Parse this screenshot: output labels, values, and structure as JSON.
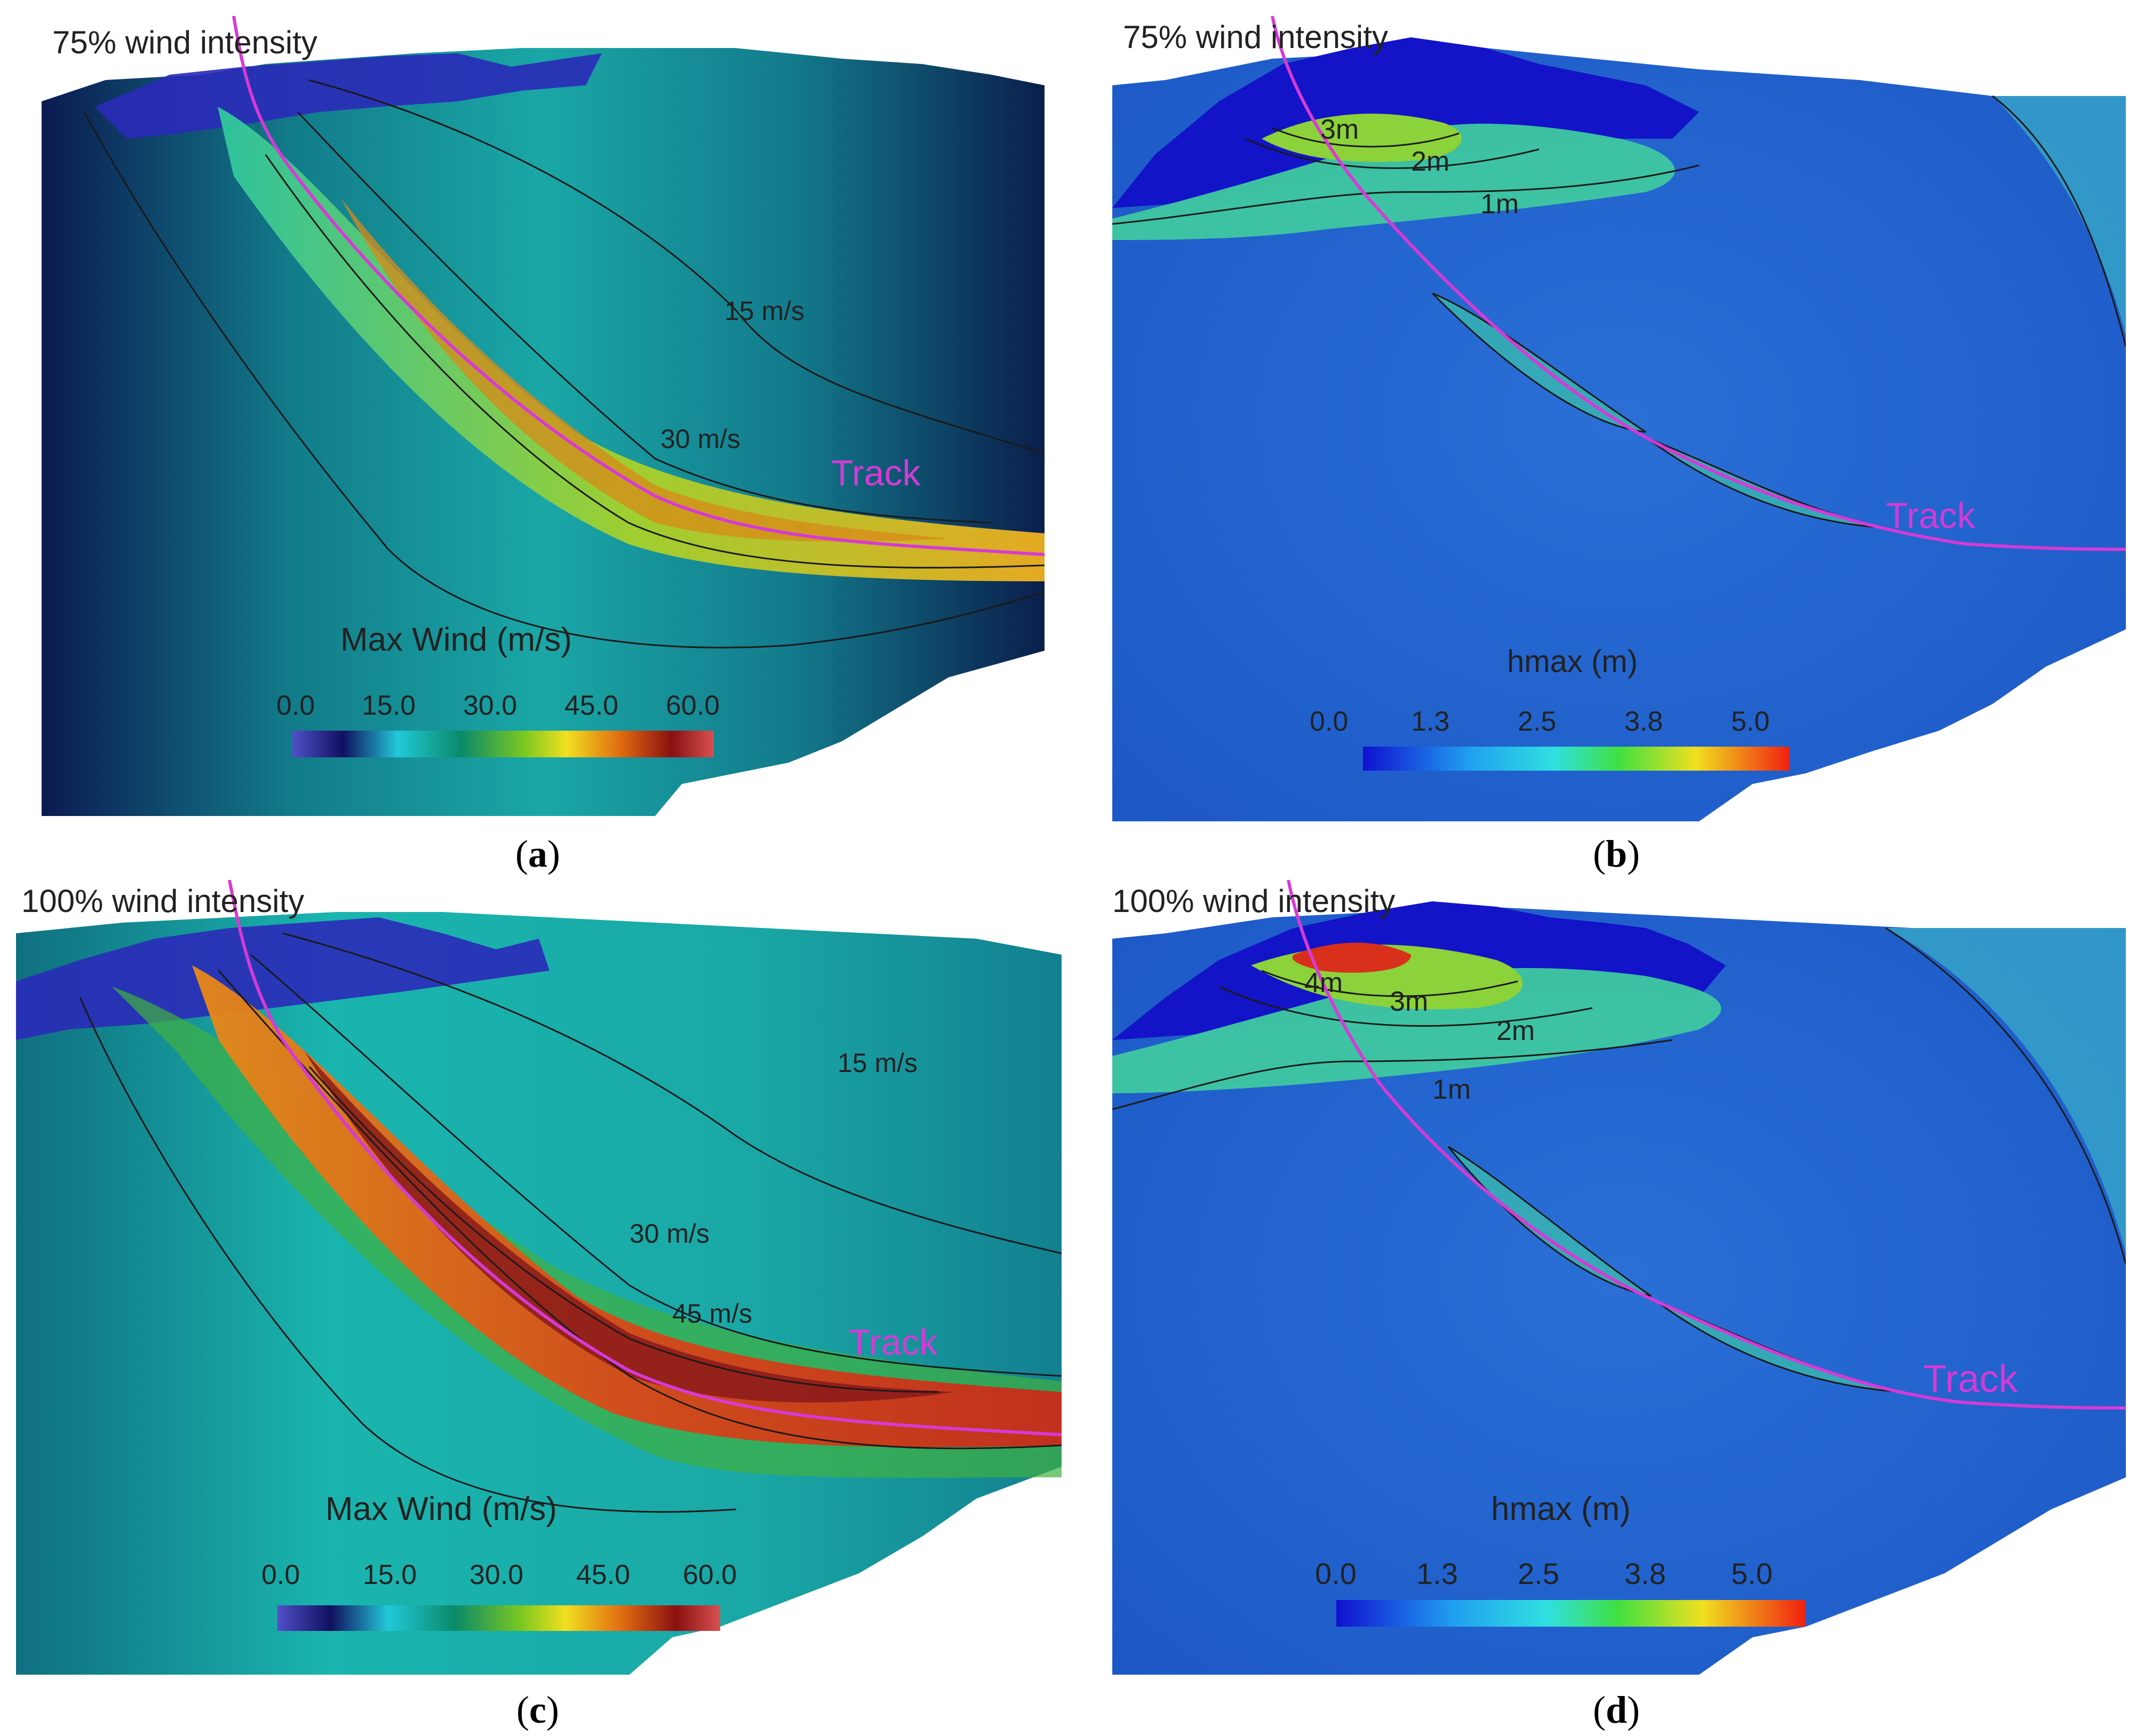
{
  "panels": [
    {
      "id": "a",
      "kind": "wind",
      "intensity_label": "75% wind intensity",
      "colorbar_title": "Max Wind  (m/s)",
      "colorbar_ticks": [
        "0.0",
        "15.0",
        "30.0",
        "45.0",
        "60.0"
      ],
      "colorbar_range": [
        0,
        60
      ],
      "contour_labels": [
        "15 m/s",
        "30 m/s"
      ],
      "track_label": "Track",
      "sublabel": "a"
    },
    {
      "id": "b",
      "kind": "surge",
      "intensity_label": "75% wind intensity",
      "colorbar_title": "hmax (m)",
      "colorbar_ticks": [
        "0.0",
        "1.3",
        "2.5",
        "3.8",
        "5.0"
      ],
      "colorbar_range": [
        0,
        5
      ],
      "contour_labels": [
        "3m",
        "2m",
        "1m"
      ],
      "track_label": "Track",
      "sublabel": "b"
    },
    {
      "id": "c",
      "kind": "wind",
      "intensity_label": "100% wind intensity",
      "colorbar_title": "Max Wind  (m/s)",
      "colorbar_ticks": [
        "0.0",
        "15.0",
        "30.0",
        "45.0",
        "60.0"
      ],
      "colorbar_range": [
        0,
        60
      ],
      "contour_labels": [
        "15 m/s",
        "30 m/s",
        "45 m/s"
      ],
      "track_label": "Track",
      "sublabel": "c"
    },
    {
      "id": "d",
      "kind": "surge",
      "intensity_label": "100% wind intensity",
      "colorbar_title": "hmax (m)",
      "colorbar_ticks": [
        "0.0",
        "1.3",
        "2.5",
        "3.8",
        "5.0"
      ],
      "colorbar_range": [
        0,
        5
      ],
      "contour_labels": [
        "4m",
        "3m",
        "2m",
        "1m"
      ],
      "track_label": "Track",
      "sublabel": "d"
    }
  ],
  "colors": {
    "track": "#d63ad6",
    "contour": "#1a1a1a",
    "land": "#2626b8",
    "wind_background_dark": "#0a1a4a",
    "wind_background_light": "#1fb8b0",
    "surge_background": "#1f5fd0"
  }
}
